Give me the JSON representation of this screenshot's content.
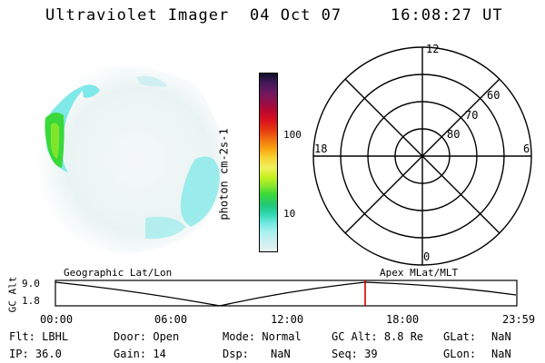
{
  "header": {
    "title": "Ultraviolet Imager",
    "date": "04 Oct 07",
    "time": "16:08:27 UT"
  },
  "colorbar": {
    "label": "photon cm-2s-1",
    "ticks": [
      {
        "value": "100"
      },
      {
        "value": "10"
      }
    ],
    "colors": [
      "#e6f2f2",
      "#cfeff0",
      "#a8f0f0",
      "#6fe8e0",
      "#2fd8b0",
      "#20c878",
      "#3ad83a",
      "#8ae82a",
      "#c8f020",
      "#f0f060",
      "#f8d030",
      "#f8a010",
      "#f07010",
      "#e83a10",
      "#d81020",
      "#b80830",
      "#901048",
      "#701860",
      "#401858",
      "#101028"
    ]
  },
  "polar": {
    "lat_labels": [
      "80",
      "70",
      "60"
    ],
    "mlt_labels": {
      "top": "12",
      "left": "18",
      "right": "6",
      "bottom": "0"
    }
  },
  "timeline": {
    "left_caption": "Geographic Lat/Lon",
    "right_caption": "Apex MLat/MLT",
    "y_axis_label": "GC Alt",
    "y_ticks": [
      "9.0",
      "1.8"
    ],
    "x_ticks": [
      "00:00",
      "06:00",
      "12:00",
      "18:00",
      "23:59"
    ],
    "current_time_marker": "16:08"
  },
  "info": {
    "filter_label": "Flt:",
    "filter_value": "LBHL",
    "door_label": "Door:",
    "door_value": "Open",
    "mode_label": "Mode:",
    "mode_value": "Normal",
    "gcalt_label": "GC Alt:",
    "gcalt_value": "8.8 Re",
    "glat_label": "GLat:",
    "glat_value": "NaN",
    "ip_label": "IP:",
    "ip_value": "36.0",
    "gain_label": "Gain:",
    "gain_value": "14",
    "dsp_label": "Dsp:",
    "dsp_value": "NaN",
    "seq_label": "Seq:",
    "seq_value": "39",
    "glon_label": "GLon:",
    "glon_value": "NaN"
  },
  "colors": {
    "marker": "#cc0000",
    "aurora_green": "#3ad83a",
    "aurora_cyan": "#80eaea"
  }
}
